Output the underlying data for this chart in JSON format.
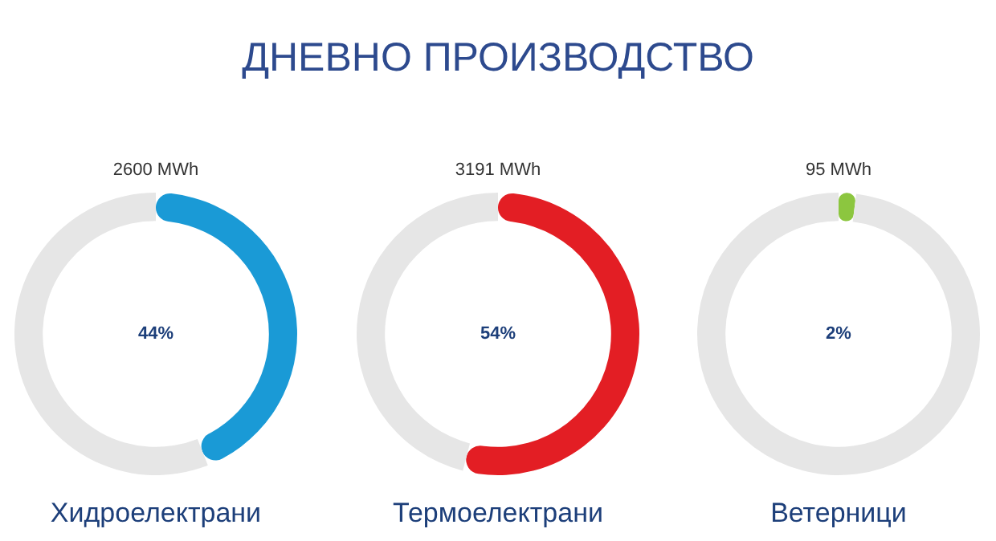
{
  "chart_data": [
    {
      "type": "donut",
      "xlabel": "Хидроелектрани",
      "categories": [
        null,
        null
      ],
      "values": [
        44,
        56
      ],
      "colors": [
        "#1a9ad6",
        "#e6e6e6"
      ],
      "annotations": [
        "2600 MWh",
        "44%"
      ]
    },
    {
      "type": "donut",
      "title": "ДНЕВНО ПРОИЗВОДСТВО",
      "xlabel": "Термоелектрани",
      "categories": [
        null,
        null
      ],
      "values": [
        54,
        46
      ],
      "colors": [
        "#e31e24",
        "#e6e6e6"
      ],
      "annotations": [
        "3191 MWh",
        "54%"
      ]
    },
    {
      "type": "donut",
      "xlabel": "Ветерници",
      "categories": [
        null,
        null
      ],
      "values": [
        2,
        98
      ],
      "colors": [
        "#8cc63f",
        "#e6e6e6"
      ],
      "annotations": [
        "95 MWh",
        "2%"
      ]
    }
  ]
}
